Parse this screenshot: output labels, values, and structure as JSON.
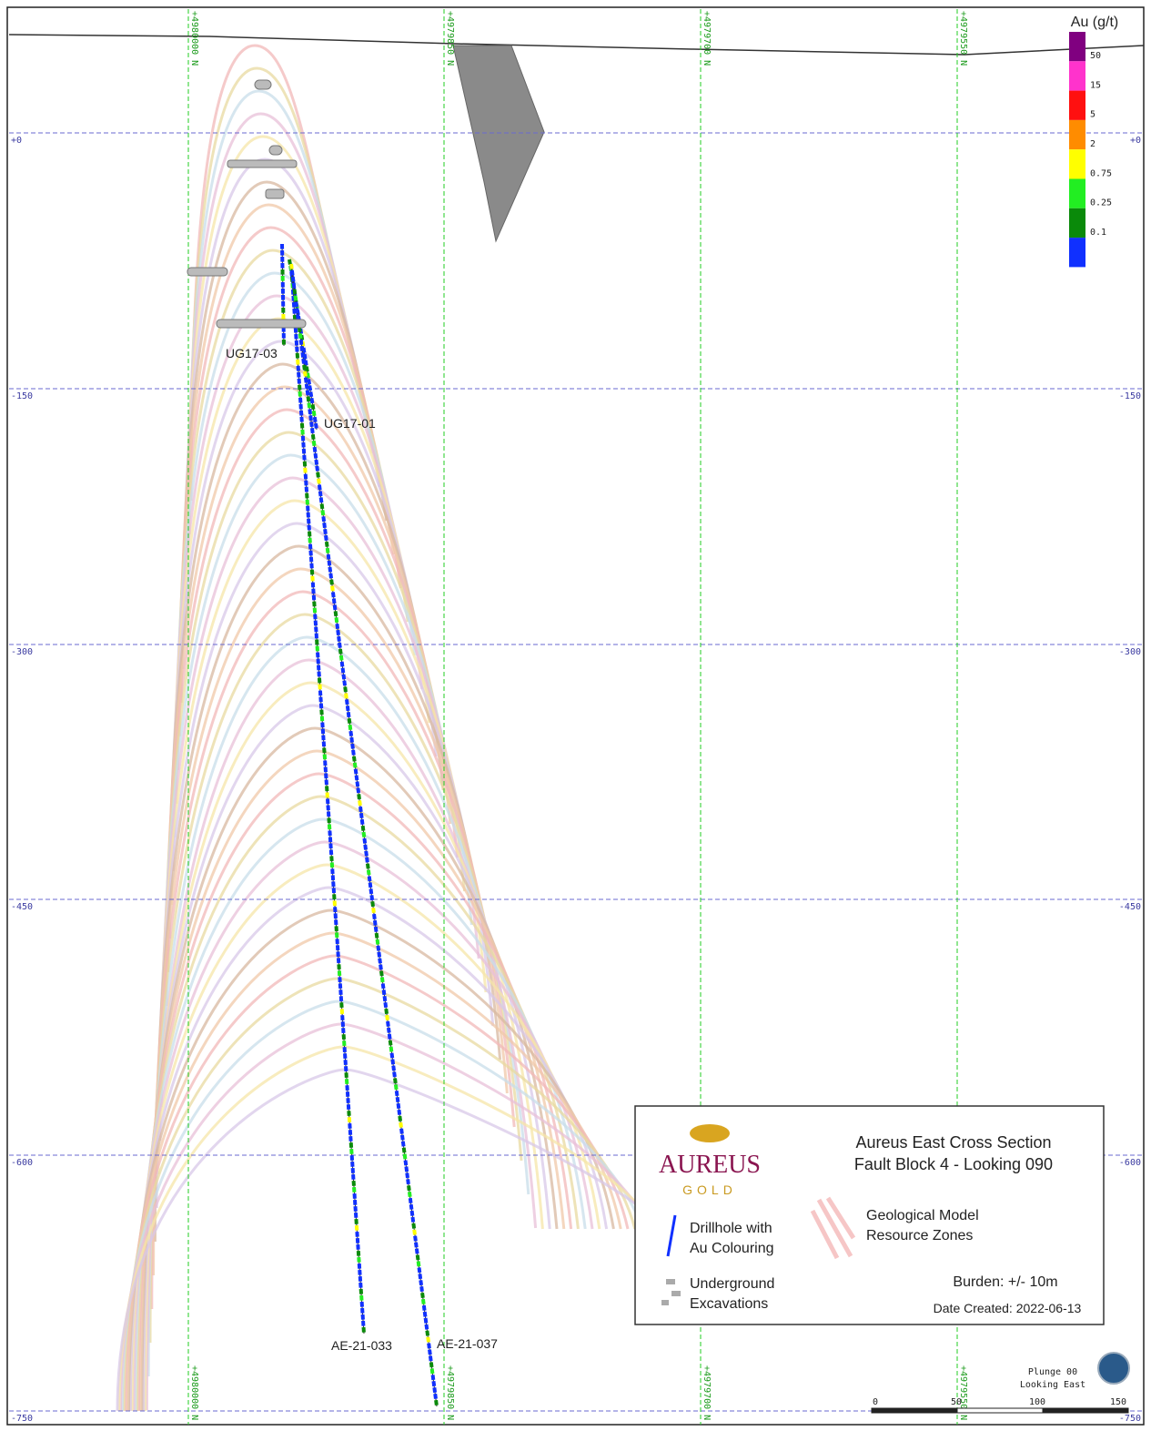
{
  "elevations": [
    "+0",
    "-150",
    "-300",
    "-450",
    "-600",
    "-750"
  ],
  "northings": [
    "+4980000 N",
    "+4979850 N",
    "+4979700 N",
    "+4979550 N"
  ],
  "au_legend": {
    "title": "Au (g/t)",
    "colors": [
      "#800080",
      "#ff33cc",
      "#ff1010",
      "#ff8c00",
      "#ffff00",
      "#22ee22",
      "#0a8a0a",
      "#1030ff"
    ],
    "labels": [
      "50",
      "15",
      "5",
      "2",
      "0.75",
      "0.25",
      "0.1"
    ]
  },
  "drillholes": [
    "UG17-03",
    "UG17-01",
    "AE-21-033",
    "AE-21-037"
  ],
  "legend_box": {
    "logo_name": "AUREUS",
    "logo_sub": "GOLD",
    "title_line1": "Aureus East Cross Section",
    "title_line2": "Fault Block 4 - Looking 090",
    "drillhole_line1": "Drillhole with",
    "drillhole_line2": "Au Colouring",
    "excavations_line1": "Underground",
    "excavations_line2": "Excavations",
    "geo_line1": "Geological Model",
    "geo_line2": "Resource Zones",
    "burden": "Burden: +/- 10m",
    "date": "Date Created: 2022-06-13"
  },
  "scale_bar": [
    "0",
    "50",
    "100",
    "150"
  ],
  "view": {
    "plunge": "Plunge 00",
    "looking": "Looking East"
  }
}
